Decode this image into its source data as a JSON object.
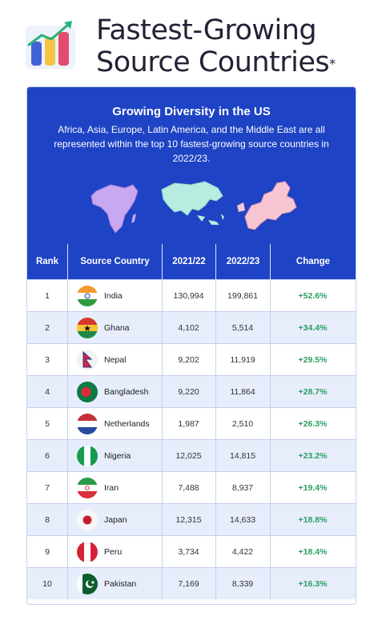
{
  "header": {
    "title_line1": "Fastest-Growing",
    "title_line2": "Source Countries",
    "title_mark": "*"
  },
  "banner": {
    "title": "Growing Diversity in the US",
    "text": "Africa, Asia, Europe, Latin America, and the Middle East are all represented within the top 10 fastest-growing source countries in 2022/23."
  },
  "table": {
    "columns": [
      "Rank",
      "Source Country",
      "2021/22",
      "2022/23",
      "Change"
    ],
    "rows": [
      {
        "rank": "1",
        "country": "India",
        "y2021": "130,994",
        "y2022": "199,861",
        "change": "+52.6%"
      },
      {
        "rank": "2",
        "country": "Ghana",
        "y2021": "4,102",
        "y2022": "5,514",
        "change": "+34.4%"
      },
      {
        "rank": "3",
        "country": "Nepal",
        "y2021": "9,202",
        "y2022": "11,919",
        "change": "+29.5%"
      },
      {
        "rank": "4",
        "country": "Bangladesh",
        "y2021": "9,220",
        "y2022": "11,864",
        "change": "+28.7%"
      },
      {
        "rank": "5",
        "country": "Netherlands",
        "y2021": "1,987",
        "y2022": "2,510",
        "change": "+26.3%"
      },
      {
        "rank": "6",
        "country": "Nigeria",
        "y2021": "12,025",
        "y2022": "14,815",
        "change": "+23.2%"
      },
      {
        "rank": "7",
        "country": "Iran",
        "y2021": "7,488",
        "y2022": "8,937",
        "change": "+19.4%"
      },
      {
        "rank": "8",
        "country": "Japan",
        "y2021": "12,315",
        "y2022": "14,633",
        "change": "+18.8%"
      },
      {
        "rank": "9",
        "country": "Peru",
        "y2021": "3,734",
        "y2022": "4,422",
        "change": "+18.4%"
      },
      {
        "rank": "10",
        "country": "Pakistan",
        "y2021": "7,169",
        "y2022": "8,339",
        "change": "+16.3%"
      }
    ]
  },
  "colors": {
    "brand_blue": "#1e43c4",
    "positive_green": "#2a9d63",
    "row_alt": "#e7edfb"
  },
  "icons": {
    "logo": "bar-chart-growth-icon",
    "maps": [
      "africa-map",
      "asia-map",
      "europe-map"
    ]
  }
}
